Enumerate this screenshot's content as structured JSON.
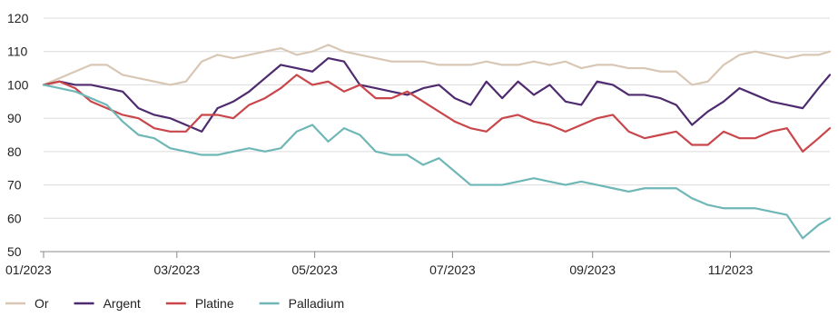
{
  "chart_data": {
    "type": "line",
    "title": "",
    "xlabel": "",
    "ylabel": "",
    "ylim": [
      50,
      120
    ],
    "yticks": [
      50,
      60,
      70,
      80,
      90,
      100,
      110,
      120
    ],
    "xlim": [
      "2023-01-01",
      "2023-12-15"
    ],
    "xticks": [
      {
        "date": "2023-01-01",
        "label": "01/2023"
      },
      {
        "date": "2023-03-01",
        "label": "03/2023"
      },
      {
        "date": "2023-05-01",
        "label": "05/2023"
      },
      {
        "date": "2023-07-01",
        "label": "07/2023"
      },
      {
        "date": "2023-09-01",
        "label": "09/2023"
      },
      {
        "date": "2023-11-01",
        "label": "11/2023"
      }
    ],
    "grid": "horizontal",
    "legend_position": "bottom-left",
    "x": [
      "2023-01-01",
      "2023-01-08",
      "2023-01-15",
      "2023-01-22",
      "2023-01-29",
      "2023-02-05",
      "2023-02-12",
      "2023-02-19",
      "2023-02-26",
      "2023-03-05",
      "2023-03-12",
      "2023-03-19",
      "2023-03-26",
      "2023-04-02",
      "2023-04-09",
      "2023-04-16",
      "2023-04-23",
      "2023-04-30",
      "2023-05-07",
      "2023-05-14",
      "2023-05-21",
      "2023-05-28",
      "2023-06-04",
      "2023-06-11",
      "2023-06-18",
      "2023-06-25",
      "2023-07-02",
      "2023-07-09",
      "2023-07-16",
      "2023-07-23",
      "2023-07-30",
      "2023-08-06",
      "2023-08-13",
      "2023-08-20",
      "2023-08-27",
      "2023-09-03",
      "2023-09-10",
      "2023-09-17",
      "2023-09-24",
      "2023-10-01",
      "2023-10-08",
      "2023-10-15",
      "2023-10-22",
      "2023-10-29",
      "2023-11-05",
      "2023-11-12",
      "2023-11-19",
      "2023-11-26",
      "2023-12-03",
      "2023-12-10",
      "2023-12-15"
    ],
    "series": [
      {
        "name": "Or",
        "color": "#d9c7b5",
        "values": [
          100,
          102,
          104,
          106,
          106,
          103,
          102,
          101,
          100,
          101,
          107,
          109,
          108,
          109,
          110,
          111,
          109,
          110,
          112,
          110,
          109,
          108,
          107,
          107,
          107,
          106,
          106,
          106,
          107,
          106,
          106,
          107,
          106,
          107,
          105,
          106,
          106,
          105,
          105,
          104,
          104,
          100,
          101,
          106,
          109,
          110,
          109,
          108,
          109,
          109,
          110
        ]
      },
      {
        "name": "Argent",
        "color": "#4e2a6e",
        "values": [
          100,
          101,
          100,
          100,
          99,
          98,
          93,
          91,
          90,
          88,
          86,
          93,
          95,
          98,
          102,
          106,
          105,
          104,
          108,
          107,
          100,
          99,
          98,
          97,
          99,
          100,
          96,
          94,
          101,
          96,
          101,
          97,
          100,
          95,
          94,
          101,
          100,
          97,
          97,
          96,
          94,
          88,
          92,
          95,
          99,
          97,
          95,
          94,
          93,
          99,
          103
        ]
      },
      {
        "name": "Platine",
        "color": "#c9464b",
        "values": [
          100,
          101,
          99,
          95,
          93,
          91,
          90,
          87,
          86,
          86,
          91,
          91,
          90,
          94,
          96,
          99,
          103,
          100,
          101,
          98,
          100,
          96,
          96,
          98,
          95,
          92,
          89,
          87,
          86,
          90,
          91,
          89,
          88,
          86,
          88,
          90,
          91,
          86,
          84,
          85,
          86,
          82,
          82,
          86,
          84,
          84,
          86,
          87,
          80,
          84,
          87
        ]
      },
      {
        "name": "Palladium",
        "color": "#6fb7b6",
        "values": [
          100,
          99,
          98,
          96,
          94,
          89,
          85,
          84,
          81,
          80,
          79,
          79,
          80,
          81,
          80,
          81,
          86,
          88,
          83,
          87,
          85,
          80,
          79,
          79,
          76,
          78,
          74,
          70,
          70,
          70,
          71,
          72,
          71,
          70,
          71,
          70,
          69,
          68,
          69,
          69,
          69,
          66,
          64,
          63,
          63,
          63,
          62,
          61,
          54,
          58,
          60
        ]
      }
    ]
  }
}
